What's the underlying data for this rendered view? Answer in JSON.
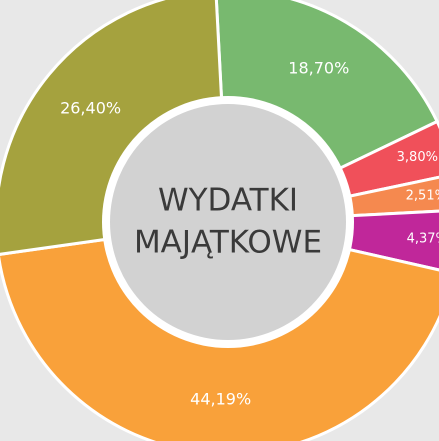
{
  "chart_data": {
    "type": "donut",
    "title": [
      "WYDATKI",
      "MAJĄTKOWE"
    ],
    "values": [
      18.7,
      3.8,
      2.51,
      4.37,
      44.19,
      26.4
    ],
    "value_labels": [
      "18,70%",
      "3,80%",
      "2,51%",
      "4,37%",
      "44,19%",
      "26,40%"
    ],
    "colors": [
      "#78b96f",
      "#f0505a",
      "#f5894f",
      "#c0279a",
      "#f9a13a",
      "#a5a23e"
    ]
  }
}
